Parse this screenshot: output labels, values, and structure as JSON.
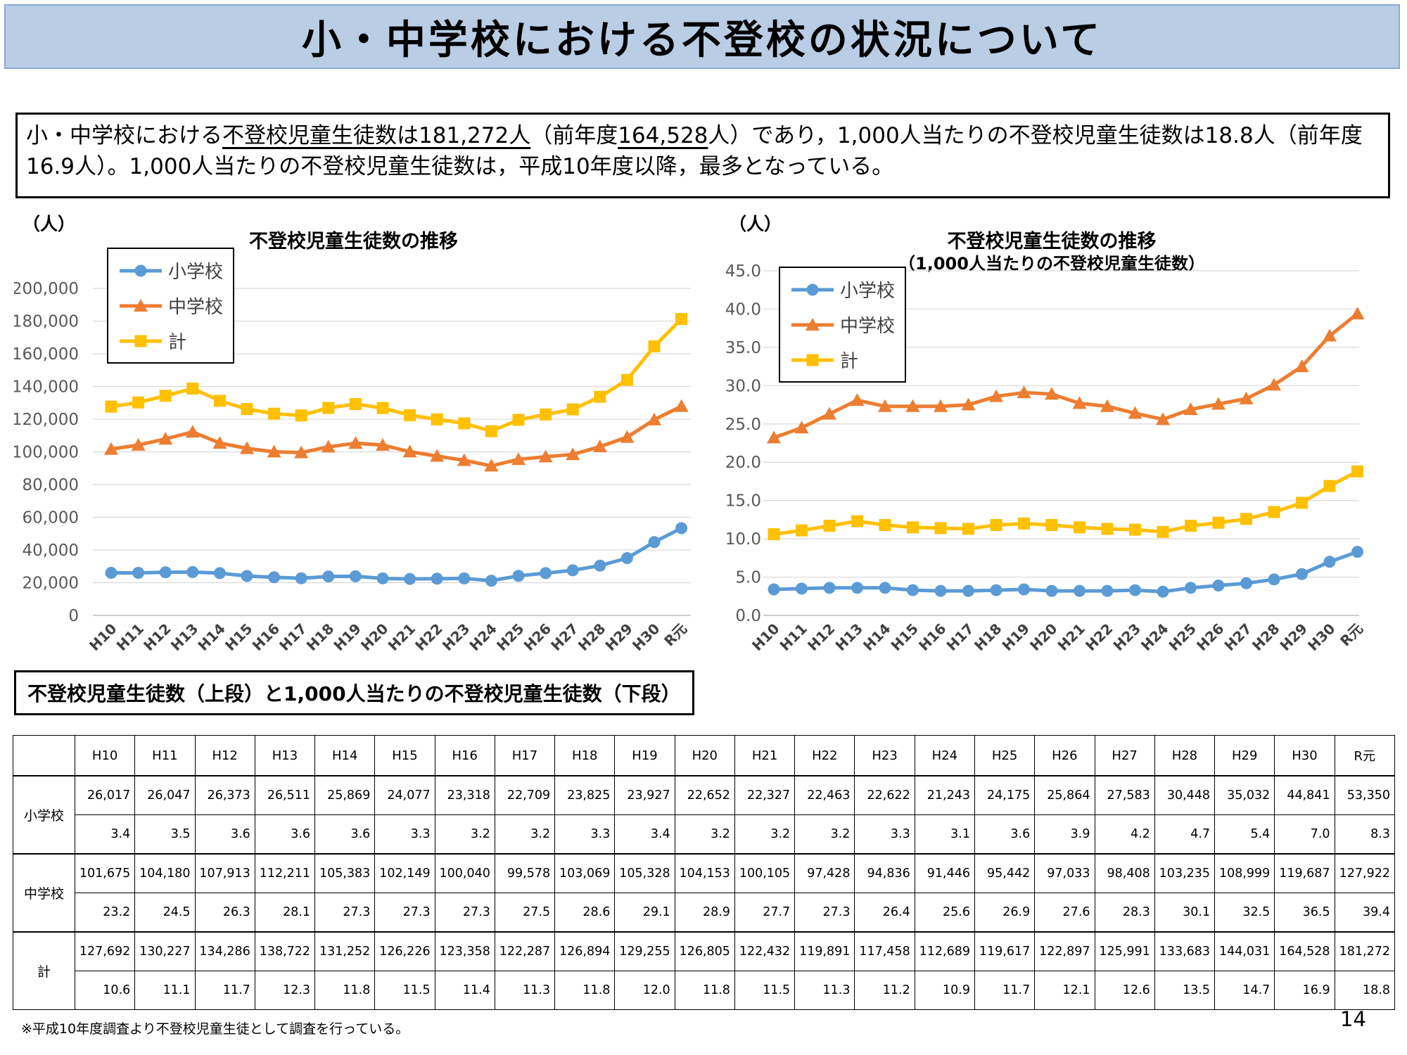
{
  "header": {
    "title": "小・中学校における不登校の状況について"
  },
  "summary": {
    "seg1": "小・中学校における",
    "seg2": "不登校児童生徒数は181,272人",
    "seg3": "（前年度",
    "seg4": "164,528",
    "seg5": "人）であり，1,000人当たりの不登校児童生徒数は18.8人（前年度16.9人）。1,000人当たりの不登校児童生徒数は，平成10年度以降，最多となっている。"
  },
  "years": [
    "H10",
    "H11",
    "H12",
    "H13",
    "H14",
    "H15",
    "H16",
    "H17",
    "H18",
    "H19",
    "H20",
    "H21",
    "H22",
    "H23",
    "H24",
    "H25",
    "H26",
    "H27",
    "H28",
    "H29",
    "H30",
    "R元"
  ],
  "colors": {
    "elementary": "#5B9BD5",
    "junior_high": "#ED7D31",
    "total": "#FFC000"
  },
  "chart_data": [
    {
      "type": "line",
      "title": "不登校児童生徒数の推移",
      "unit_label": "（人）",
      "categories": [
        "H10",
        "H11",
        "H12",
        "H13",
        "H14",
        "H15",
        "H16",
        "H17",
        "H18",
        "H19",
        "H20",
        "H21",
        "H22",
        "H23",
        "H24",
        "H25",
        "H26",
        "H27",
        "H28",
        "H29",
        "H30",
        "R元"
      ],
      "ylim": [
        0,
        200000
      ],
      "ytick_step": 20000,
      "ytick_format": "comma",
      "grid": true,
      "legend_position": "top-left-inside",
      "series": [
        {
          "name": "小学校",
          "marker": "circle",
          "color": "#5B9BD5",
          "values": [
            26017,
            26047,
            26373,
            26511,
            25869,
            24077,
            23318,
            22709,
            23825,
            23927,
            22652,
            22327,
            22463,
            22622,
            21243,
            24175,
            25864,
            27583,
            30448,
            35032,
            44841,
            53350
          ]
        },
        {
          "name": "中学校",
          "marker": "triangle",
          "color": "#ED7D31",
          "values": [
            101675,
            104180,
            107913,
            112211,
            105383,
            102149,
            100040,
            99578,
            103069,
            105328,
            104153,
            100105,
            97428,
            94836,
            91446,
            95442,
            97033,
            98408,
            103235,
            108999,
            119687,
            127922
          ]
        },
        {
          "name": "計",
          "marker": "square",
          "color": "#FFC000",
          "values": [
            127692,
            130227,
            134286,
            138722,
            131252,
            126226,
            123358,
            122287,
            126894,
            129255,
            126805,
            122432,
            119891,
            117458,
            112689,
            119617,
            122897,
            125991,
            133683,
            144031,
            164528,
            181272
          ]
        }
      ]
    },
    {
      "type": "line",
      "title": "不登校児童生徒数の推移",
      "subtitle": "（1,000人当たりの不登校児童生徒数）",
      "unit_label": "（人）",
      "categories": [
        "H10",
        "H11",
        "H12",
        "H13",
        "H14",
        "H15",
        "H16",
        "H17",
        "H18",
        "H19",
        "H20",
        "H21",
        "H22",
        "H23",
        "H24",
        "H25",
        "H26",
        "H27",
        "H28",
        "H29",
        "H30",
        "R元"
      ],
      "ylim": [
        0,
        45
      ],
      "ytick_step": 5,
      "ytick_format": "fixed1",
      "grid": true,
      "legend_position": "top-left-inside",
      "series": [
        {
          "name": "小学校",
          "marker": "circle",
          "color": "#5B9BD5",
          "values": [
            3.4,
            3.5,
            3.6,
            3.6,
            3.6,
            3.3,
            3.2,
            3.2,
            3.3,
            3.4,
            3.2,
            3.2,
            3.2,
            3.3,
            3.1,
            3.6,
            3.9,
            4.2,
            4.7,
            5.4,
            7.0,
            8.3
          ]
        },
        {
          "name": "中学校",
          "marker": "triangle",
          "color": "#ED7D31",
          "values": [
            23.2,
            24.5,
            26.3,
            28.1,
            27.3,
            27.3,
            27.3,
            27.5,
            28.6,
            29.1,
            28.9,
            27.7,
            27.3,
            26.4,
            25.6,
            26.9,
            27.6,
            28.3,
            30.1,
            32.5,
            36.5,
            39.4
          ]
        },
        {
          "name": "計",
          "marker": "square",
          "color": "#FFC000",
          "values": [
            10.6,
            11.1,
            11.7,
            12.3,
            11.8,
            11.5,
            11.4,
            11.3,
            11.8,
            12.0,
            11.8,
            11.5,
            11.3,
            11.2,
            10.9,
            11.7,
            12.1,
            12.6,
            13.5,
            14.7,
            16.9,
            18.8
          ]
        }
      ]
    }
  ],
  "table": {
    "section_title": "不登校児童生徒数（上段）と1,000人当たりの不登校児童生徒数（下段）",
    "corner": "",
    "row_labels": [
      "小学校",
      "中学校",
      "計"
    ]
  },
  "footnote": "※平成10年度調査より不登校児童生徒として調査を行っている。",
  "page_number": "14"
}
